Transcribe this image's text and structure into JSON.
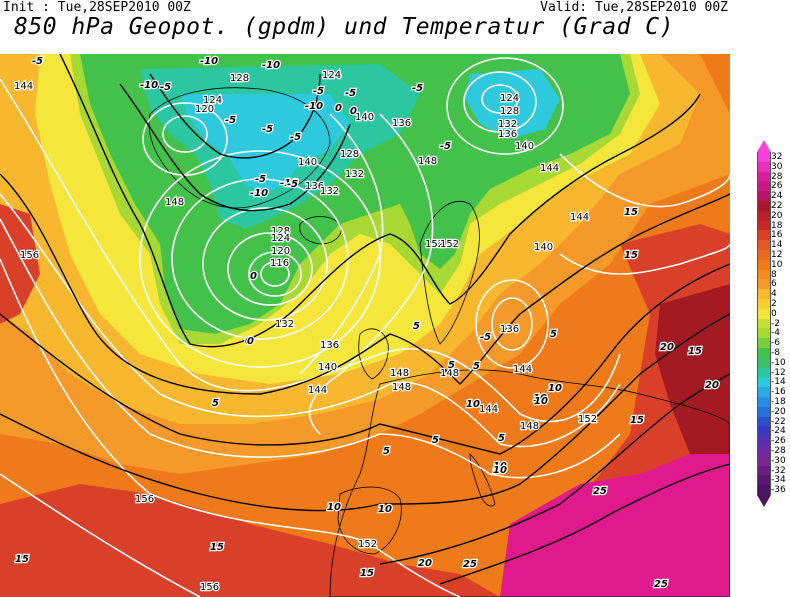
{
  "header": {
    "init": "Init : Tue,28SEP2010 00Z",
    "valid": "Valid: Tue,28SEP2010 00Z",
    "title": "850 hPa Geopot. (gpdm) und Temperatur (Grad C)"
  },
  "colors": {
    "ocean_warm": "#ef7a1a",
    "orange": "#f59a2a",
    "yellow_orange": "#f7b830",
    "yellow": "#f4e63a",
    "light_green": "#a8d834",
    "green": "#44c14a",
    "teal": "#2cc6a0",
    "cyan": "#2ec9dc",
    "red": "#d8402a",
    "dark_red": "#a41a22",
    "magenta": "#e0198c",
    "contour_geopot": "#ffffff",
    "contour_temp": "#000000"
  },
  "colorbar": {
    "labels": [
      "32",
      "30",
      "28",
      "26",
      "24",
      "22",
      "20",
      "18",
      "16",
      "14",
      "12",
      "10",
      "8",
      "6",
      "4",
      "2",
      "0",
      "-2",
      "-4",
      "-6",
      "-8",
      "-10",
      "-12",
      "-14",
      "-16",
      "-18",
      "-20",
      "-22",
      "-24",
      "-26",
      "-28",
      "-30",
      "-32",
      "-34",
      "-36"
    ],
    "colors": [
      "#f542d4",
      "#e830b8",
      "#d81f9a",
      "#c81a82",
      "#b5146a",
      "#a51a2a",
      "#b8222a",
      "#c8282a",
      "#d8402a",
      "#e05a28",
      "#e86a22",
      "#ef7a1a",
      "#f28a20",
      "#f59a2a",
      "#f7b830",
      "#f6d032",
      "#f4e63a",
      "#c8dc38",
      "#a8d834",
      "#7ccd3c",
      "#44c14a",
      "#3cbf6a",
      "#2cc6a0",
      "#2ec9dc",
      "#2aa8e0",
      "#2a8ce0",
      "#2a6ed8",
      "#2a50cc",
      "#3a3ac0",
      "#5a30b0",
      "#6e2aa0",
      "#7a2890",
      "#6a1e80",
      "#5a1870",
      "#4a1460"
    ]
  },
  "geopotential_labels": [
    {
      "text": "144"
    },
    {
      "text": "128"
    },
    {
      "text": "124"
    },
    {
      "text": "120"
    },
    {
      "text": "124"
    },
    {
      "text": "140"
    },
    {
      "text": "136"
    },
    {
      "text": "132"
    },
    {
      "text": "128"
    },
    {
      "text": "140"
    },
    {
      "text": "136"
    },
    {
      "text": "132"
    },
    {
      "text": "128"
    },
    {
      "text": "124"
    },
    {
      "text": "120"
    },
    {
      "text": "116"
    },
    {
      "text": "132"
    },
    {
      "text": "136"
    },
    {
      "text": "140"
    },
    {
      "text": "144"
    },
    {
      "text": "148"
    },
    {
      "text": "148"
    },
    {
      "text": "152"
    },
    {
      "text": "152"
    },
    {
      "text": "156"
    },
    {
      "text": "148"
    },
    {
      "text": "124"
    },
    {
      "text": "128"
    },
    {
      "text": "132"
    },
    {
      "text": "136"
    },
    {
      "text": "140"
    },
    {
      "text": "144"
    },
    {
      "text": "148"
    },
    {
      "text": "144"
    },
    {
      "text": "140"
    },
    {
      "text": "136"
    },
    {
      "text": "144"
    },
    {
      "text": "144"
    },
    {
      "text": "148"
    },
    {
      "text": "152"
    },
    {
      "text": "152"
    },
    {
      "text": "156"
    },
    {
      "text": "156"
    },
    {
      "text": "152"
    },
    {
      "text": "148"
    }
  ],
  "temperature_labels": [
    {
      "text": "-5"
    },
    {
      "text": "-10"
    },
    {
      "text": "-10"
    },
    {
      "text": "-10"
    },
    {
      "text": "-5"
    },
    {
      "text": "-5"
    },
    {
      "text": "-10"
    },
    {
      "text": "0"
    },
    {
      "text": "-5"
    },
    {
      "text": "-5"
    },
    {
      "text": "-10"
    },
    {
      "text": "-5"
    },
    {
      "text": "-5"
    },
    {
      "text": "-5"
    },
    {
      "text": "0"
    },
    {
      "text": "-5"
    },
    {
      "text": "0"
    },
    {
      "text": "-5"
    },
    {
      "text": "-10"
    },
    {
      "text": "-5"
    },
    {
      "text": "5"
    },
    {
      "text": "0"
    },
    {
      "text": "5"
    },
    {
      "text": "5"
    },
    {
      "text": "5"
    },
    {
      "text": "10"
    },
    {
      "text": "10"
    },
    {
      "text": "5"
    },
    {
      "text": "10"
    },
    {
      "text": "15"
    },
    {
      "text": "15"
    },
    {
      "text": "20"
    },
    {
      "text": "15"
    },
    {
      "text": "20"
    },
    {
      "text": "10"
    },
    {
      "text": "15"
    },
    {
      "text": "25"
    },
    {
      "text": "25"
    },
    {
      "text": "15"
    },
    {
      "text": "20"
    },
    {
      "text": "25"
    },
    {
      "text": "10"
    },
    {
      "text": "15"
    },
    {
      "text": "10"
    },
    {
      "text": "15"
    },
    {
      "text": "5"
    },
    {
      "text": "10"
    },
    {
      "text": "5"
    },
    {
      "text": "0"
    },
    {
      "text": "-5"
    },
    {
      "text": "5"
    },
    {
      "text": "10"
    }
  ]
}
